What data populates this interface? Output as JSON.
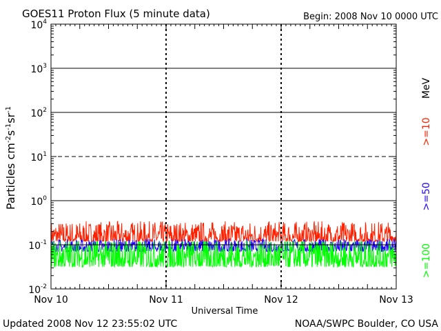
{
  "header": {
    "title": "GOES11 Proton Flux (5 minute data)",
    "begin": "Begin: 2008 Nov 10 0000 UTC"
  },
  "footer": {
    "updated": "Updated 2008 Nov 12 23:55:02 UTC",
    "credit": "NOAA/SWPC Boulder, CO USA"
  },
  "colors": {
    "ge10": "#ff2000",
    "ge50": "#1e00ff",
    "ge100": "#00ff00",
    "axis": "#000000",
    "background": "#ffffff"
  },
  "chart_data": {
    "type": "line",
    "title": "GOES11 Proton Flux (5 minute data)",
    "xlabel": "Universal Time",
    "ylabel": "Particles cm⁻²s⁻¹sr⁻¹",
    "y_scale": "log",
    "ylim": [
      0.01,
      10000
    ],
    "y_ticks": [
      {
        "value": 0.01,
        "base": "10",
        "exp": "-2"
      },
      {
        "value": 0.1,
        "base": "10",
        "exp": "-1"
      },
      {
        "value": 1,
        "base": "10",
        "exp": "0"
      },
      {
        "value": 10,
        "base": "10",
        "exp": "1"
      },
      {
        "value": 100,
        "base": "10",
        "exp": "2"
      },
      {
        "value": 1000,
        "base": "10",
        "exp": "3"
      },
      {
        "value": 10000,
        "base": "10",
        "exp": "4"
      }
    ],
    "reference_lines": [
      {
        "value": 1000,
        "style": "solid"
      },
      {
        "value": 100,
        "style": "solid"
      },
      {
        "value": 10,
        "style": "dashed"
      },
      {
        "value": 1,
        "style": "solid"
      },
      {
        "value": 0.1,
        "style": "solid"
      }
    ],
    "x_range": [
      "2008-11-10 00:00",
      "2008-11-13 00:00"
    ],
    "x_ticks": [
      "Nov 10",
      "Nov 11",
      "Nov 12",
      "Nov 13"
    ],
    "grid": "dashed vertical lines at day boundaries",
    "legend_position": "right, vertical",
    "unit_label": "MeV",
    "series": [
      {
        "name": ">=10",
        "color": "#ff2000",
        "typical": 0.2,
        "min": 0.12,
        "max": 0.5
      },
      {
        "name": ">=50",
        "color": "#1e00ff",
        "typical": 0.1,
        "min": 0.05,
        "max": 0.17
      },
      {
        "name": ">=100",
        "color": "#00ff00",
        "typical": 0.055,
        "min": 0.025,
        "max": 0.12
      }
    ]
  }
}
